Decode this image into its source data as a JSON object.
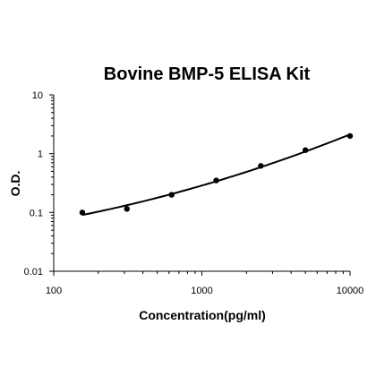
{
  "chart_data": {
    "type": "scatter",
    "title": "Bovine BMP-5 ELISA Kit",
    "xlabel": "Concentration(pg/ml)",
    "ylabel": "O.D.",
    "xscale": "log",
    "yscale": "log",
    "xlim": [
      100,
      10000
    ],
    "ylim": [
      0.01,
      10
    ],
    "x_ticks": [
      100,
      1000,
      10000
    ],
    "x_tick_labels": [
      "100",
      "1000",
      "10000"
    ],
    "y_ticks": [
      0.01,
      0.1,
      1,
      10
    ],
    "y_tick_labels": [
      "0.01",
      "0.1",
      "1",
      "10"
    ],
    "grid": false,
    "legend": "none",
    "series": [
      {
        "x": [
          156,
          312,
          625,
          1250,
          2500,
          5000,
          10000
        ],
        "y": [
          0.1,
          0.115,
          0.2,
          0.35,
          0.62,
          1.15,
          2.0
        ],
        "fit_curve": true
      }
    ],
    "colors": {
      "marker": "#000000",
      "line": "#000000"
    }
  }
}
